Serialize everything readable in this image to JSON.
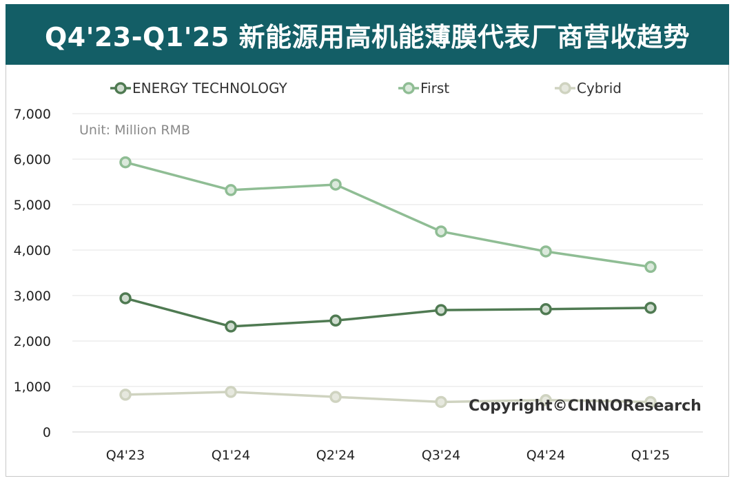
{
  "header": {
    "title": "Q4'23-Q1'25 新能源用高机能薄膜代表厂商营收趋势"
  },
  "chart_data": {
    "type": "line",
    "title": "Q4'23-Q1'25 新能源用高机能薄膜代表厂商营收趋势",
    "unit_label": "Unit: Million RMB",
    "copyright": "Copyright©CINNOResearch",
    "categories": [
      "Q4'23",
      "Q1'24",
      "Q2'24",
      "Q3'24",
      "Q4'24",
      "Q1'25"
    ],
    "ylim": [
      0,
      7000
    ],
    "yticks": [
      0,
      1000,
      2000,
      3000,
      4000,
      5000,
      6000,
      7000
    ],
    "ytick_labels": [
      "0",
      "1,000",
      "2,000",
      "3,000",
      "4,000",
      "5,000",
      "6,000",
      "7,000"
    ],
    "grid": true,
    "legend_position": "top",
    "series": [
      {
        "name": "ENERGY TECHNOLOGY",
        "color": "#4f7a52",
        "fill": "#cfdccf",
        "values": [
          2940,
          2320,
          2450,
          2680,
          2700,
          2730
        ]
      },
      {
        "name": "First",
        "color": "#8fbd94",
        "fill": "#dbe9dc",
        "values": [
          5930,
          5320,
          5440,
          4410,
          3970,
          3630
        ]
      },
      {
        "name": "Cybrid",
        "color": "#cfd3c0",
        "fill": "#e6e8de",
        "values": [
          820,
          880,
          770,
          660,
          700,
          660
        ]
      }
    ]
  }
}
